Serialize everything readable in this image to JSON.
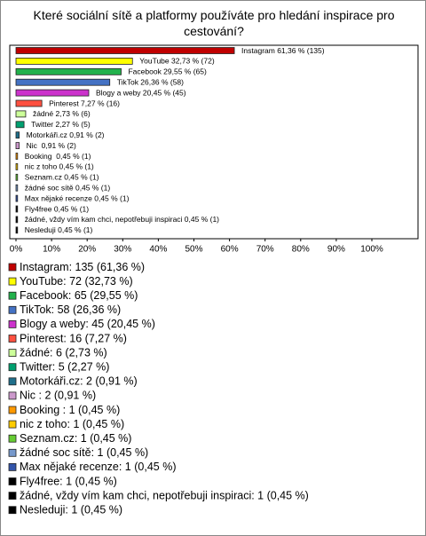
{
  "chart_data": {
    "type": "bar",
    "orientation": "horizontal",
    "title": "Které sociální sítě a platformy používáte pro hledání inspirace pro cestování?",
    "values": [
      61.36,
      32.73,
      29.55,
      26.36,
      20.45,
      7.27,
      2.73,
      2.27,
      0.91,
      0.91,
      0.45,
      0.45,
      0.45,
      0.45,
      0.45,
      0.45,
      0.45,
      0.45
    ],
    "value_labels": [
      "Instagram 61,36 % (135)",
      "YouTube 32,73 % (72)",
      "Facebook 29,55 % (65)",
      "TikTok 26,36 % (58)",
      "Blogy a weby 20,45 % (45)",
      "Pinterest 7,27 % (16)",
      "žádné 2,73 % (6)",
      "Twitter 2,27 % (5)",
      "Motorkáři.cz 0,91 % (2)",
      "Nic  0,91 % (2)",
      "Booking  0,45 % (1)",
      "nic z toho 0,45 % (1)",
      "Seznam.cz 0,45 % (1)",
      "žádné soc sítě 0,45 % (1)",
      "Max nějaké recenze 0,45 % (1)",
      "Fly4free 0,45 % (1)",
      "žádné, vždy vím kam chci, nepotřebuji inspiraci 0,45 % (1)",
      "Nesleduji 0,45 % (1)"
    ],
    "legend": [
      "Instagram: 135 (61,36 %)",
      "YouTube: 72 (32,73 %)",
      "Facebook: 65 (29,55 %)",
      "TikTok: 58 (26,36 %)",
      "Blogy a weby: 45 (20,45 %)",
      "Pinterest: 16 (7,27 %)",
      "žádné: 6 (2,73 %)",
      "Twitter: 5 (2,27 %)",
      "Motorkáři.cz: 2 (0,91 %)",
      "Nic : 2 (0,91 %)",
      "Booking : 1 (0,45 %)",
      "nic z toho: 1 (0,45 %)",
      "Seznam.cz: 1 (0,45 %)",
      "žádné soc sítě: 1 (0,45 %)",
      "Max nějaké recenze: 1 (0,45 %)",
      "Fly4free: 1 (0,45 %)",
      "žádné, vždy vím kam chci, nepotřebuji inspiraci: 1 (0,45 %)",
      "Nesleduji: 1 (0,45 %)"
    ],
    "colors": [
      "#c00000",
      "#ffff00",
      "#22b14c",
      "#4472c4",
      "#cc33cc",
      "#ff5040",
      "#ccff99",
      "#00a070",
      "#1f6f8b",
      "#cc99cc",
      "#ff9900",
      "#ffcc00",
      "#66cc33",
      "#7799cc",
      "#3355aa",
      "#000000",
      "#000000",
      "#000000"
    ],
    "xlim": [
      0,
      100
    ],
    "xticks": [
      {
        "value": 0,
        "label": "0%"
      },
      {
        "value": 10,
        "label": "10%"
      },
      {
        "value": 20,
        "label": "20%"
      },
      {
        "value": 30,
        "label": "30%"
      },
      {
        "value": 40,
        "label": "40%"
      },
      {
        "value": 50,
        "label": "50%"
      },
      {
        "value": 60,
        "label": "60%"
      },
      {
        "value": 70,
        "label": "70%"
      },
      {
        "value": 80,
        "label": "80%"
      },
      {
        "value": 90,
        "label": "90%"
      },
      {
        "value": 100,
        "label": "100%"
      }
    ]
  }
}
